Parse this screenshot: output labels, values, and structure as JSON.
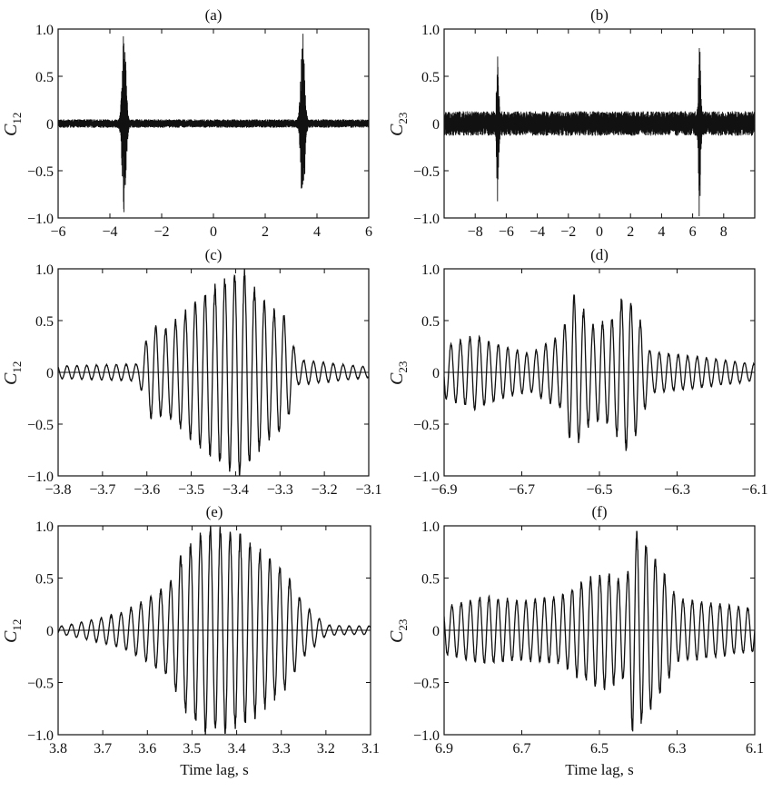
{
  "chart_data": [
    {
      "type": "line",
      "panel_label": "(a)",
      "ylabel": "C",
      "ylabel_sub": "12",
      "xlabel": "",
      "xlim": [
        -6,
        6
      ],
      "ylim": [
        -1.0,
        1.0
      ],
      "xticks": [
        -6,
        -4,
        -2,
        0,
        2,
        4,
        6
      ],
      "xtick_labels": [
        "−6",
        "−4",
        "−2",
        "0",
        "2",
        "4",
        "6"
      ],
      "yticks": [
        -1.0,
        -0.5,
        0,
        0.5,
        1.0
      ],
      "ytick_labels": [
        "−1.0",
        "−0.5",
        "0",
        "0.5",
        "1.0"
      ],
      "zero_line": false,
      "series": [
        {
          "noise": 0.045,
          "freq_hz": 2.6,
          "bursts": [
            {
              "center": -3.45,
              "amplitude": 0.97,
              "width": 0.07
            },
            {
              "center": 3.45,
              "amplitude": 0.97,
              "width": 0.07
            }
          ]
        }
      ]
    },
    {
      "type": "line",
      "panel_label": "(b)",
      "ylabel": "C",
      "ylabel_sub": "23",
      "xlabel": "",
      "xlim": [
        -10,
        10
      ],
      "ylim": [
        -1.0,
        1.0
      ],
      "xticks": [
        -8,
        -6,
        -4,
        -2,
        0,
        2,
        4,
        6,
        8
      ],
      "xtick_labels": [
        "−8",
        "−6",
        "−4",
        "−2",
        "0",
        "2",
        "4",
        "6",
        "8"
      ],
      "yticks": [
        -1.0,
        -0.5,
        0,
        0.5,
        1.0
      ],
      "ytick_labels": [
        "−1.0",
        "−0.5",
        "0",
        "0.5",
        "1.0"
      ],
      "zero_line": false,
      "series": [
        {
          "noise": 0.13,
          "freq_hz": 2.6,
          "bursts": [
            {
              "center": -6.55,
              "amplitude": 0.72,
              "width": 0.06
            },
            {
              "center": 6.45,
              "amplitude": 0.95,
              "width": 0.06
            }
          ]
        }
      ]
    },
    {
      "type": "line",
      "panel_label": "(c)",
      "ylabel": "C",
      "ylabel_sub": "12",
      "xlabel": "",
      "xlim": [
        -3.8,
        -3.1
      ],
      "ylim": [
        -1.0,
        1.0
      ],
      "xticks": [
        -3.8,
        -3.7,
        -3.6,
        -3.5,
        -3.4,
        -3.3,
        -3.2,
        -3.1
      ],
      "xtick_labels": [
        "−3.8",
        "−3.7",
        "−3.6",
        "−3.5",
        "−3.4",
        "−3.3",
        "−3.2",
        "−3.1"
      ],
      "yticks": [
        -1.0,
        -0.5,
        0,
        0.5,
        1.0
      ],
      "ytick_labels": [
        "−1.0",
        "−0.5",
        "0",
        "0.5",
        "1.0"
      ],
      "zero_line": true,
      "series": [
        {
          "freq_hz": 45,
          "phase": 0.6,
          "background": 0.05,
          "envelope": [
            [
              -3.8,
              0.06
            ],
            [
              -3.62,
              0.08
            ],
            [
              -3.59,
              0.45
            ],
            [
              -3.56,
              0.4
            ],
            [
              -3.52,
              0.55
            ],
            [
              -3.48,
              0.72
            ],
            [
              -3.43,
              0.87
            ],
            [
              -3.385,
              0.98
            ],
            [
              -3.35,
              0.75
            ],
            [
              -3.32,
              0.6
            ],
            [
              -3.29,
              0.55
            ],
            [
              -3.26,
              0.12
            ],
            [
              -3.1,
              0.05
            ]
          ]
        }
      ]
    },
    {
      "type": "line",
      "panel_label": "(d)",
      "ylabel": "C",
      "ylabel_sub": "23",
      "xlabel": "",
      "xlim": [
        -6.9,
        -6.1
      ],
      "ylim": [
        -1.0,
        1.0
      ],
      "xticks": [
        -6.9,
        -6.7,
        -6.5,
        -6.3,
        -6.1
      ],
      "xtick_labels": [
        "−6.9",
        "−6.7",
        "−6.5",
        "−6.3",
        "−6.1"
      ],
      "yticks": [
        -1.0,
        -0.5,
        0,
        0.5,
        1.0
      ],
      "ytick_labels": [
        "−1.0",
        "−0.5",
        "0",
        "0.5",
        "1.0"
      ],
      "zero_line": true,
      "series": [
        {
          "freq_hz": 41,
          "phase": 1.1,
          "background": 0.08,
          "envelope": [
            [
              -6.9,
              0.25
            ],
            [
              -6.82,
              0.35
            ],
            [
              -6.75,
              0.25
            ],
            [
              -6.68,
              0.18
            ],
            [
              -6.6,
              0.35
            ],
            [
              -6.565,
              0.75
            ],
            [
              -6.52,
              0.45
            ],
            [
              -6.47,
              0.5
            ],
            [
              -6.435,
              0.75
            ],
            [
              -6.4,
              0.55
            ],
            [
              -6.37,
              0.2
            ],
            [
              -6.25,
              0.15
            ],
            [
              -6.1,
              0.08
            ]
          ]
        }
      ]
    },
    {
      "type": "line",
      "panel_label": "(e)",
      "ylabel": "C",
      "ylabel_sub": "12",
      "xlabel": "Time lag, s",
      "xlim": [
        3.8,
        3.1
      ],
      "ylim": [
        -1.0,
        1.0
      ],
      "xticks": [
        3.8,
        3.7,
        3.6,
        3.5,
        3.4,
        3.3,
        3.2,
        3.1
      ],
      "xtick_labels": [
        "3.8",
        "3.7",
        "3.6",
        "3.5",
        "3.4",
        "3.3",
        "3.2",
        "3.1"
      ],
      "yticks": [
        -1.0,
        -0.5,
        0,
        0.5,
        1.0
      ],
      "ytick_labels": [
        "−1.0",
        "−0.5",
        "0",
        "0.5",
        "1.0"
      ],
      "zero_line": true,
      "series": [
        {
          "freq_hz": 45,
          "phase": 2.2,
          "background": 0.04,
          "envelope": [
            [
              3.8,
              0.03
            ],
            [
              3.7,
              0.12
            ],
            [
              3.65,
              0.18
            ],
            [
              3.6,
              0.3
            ],
            [
              3.55,
              0.45
            ],
            [
              3.52,
              0.75
            ],
            [
              3.47,
              0.97
            ],
            [
              3.43,
              0.95
            ],
            [
              3.38,
              0.88
            ],
            [
              3.33,
              0.7
            ],
            [
              3.29,
              0.55
            ],
            [
              3.25,
              0.25
            ],
            [
              3.2,
              0.05
            ],
            [
              3.1,
              0.03
            ]
          ]
        }
      ]
    },
    {
      "type": "line",
      "panel_label": "(f)",
      "ylabel": "C",
      "ylabel_sub": "23",
      "xlabel": "Time lag, s",
      "xlim": [
        6.9,
        6.1
      ],
      "ylim": [
        -1.0,
        1.0
      ],
      "xticks": [
        6.9,
        6.7,
        6.5,
        6.3,
        6.1
      ],
      "xtick_labels": [
        "6.9",
        "6.7",
        "6.5",
        "6.3",
        "6.1"
      ],
      "yticks": [
        -1.0,
        -0.5,
        0,
        0.5,
        1.0
      ],
      "ytick_labels": [
        "−1.0",
        "−0.5",
        "0",
        "0.5",
        "1.0"
      ],
      "zero_line": true,
      "series": [
        {
          "freq_hz": 42,
          "phase": 0.3,
          "background": 0.12,
          "envelope": [
            [
              6.9,
              0.22
            ],
            [
              6.8,
              0.32
            ],
            [
              6.7,
              0.28
            ],
            [
              6.6,
              0.32
            ],
            [
              6.55,
              0.45
            ],
            [
              6.49,
              0.55
            ],
            [
              6.43,
              0.45
            ],
            [
              6.415,
              0.97
            ],
            [
              6.385,
              0.85
            ],
            [
              6.35,
              0.65
            ],
            [
              6.3,
              0.3
            ],
            [
              6.2,
              0.25
            ],
            [
              6.1,
              0.2
            ]
          ]
        }
      ]
    }
  ]
}
